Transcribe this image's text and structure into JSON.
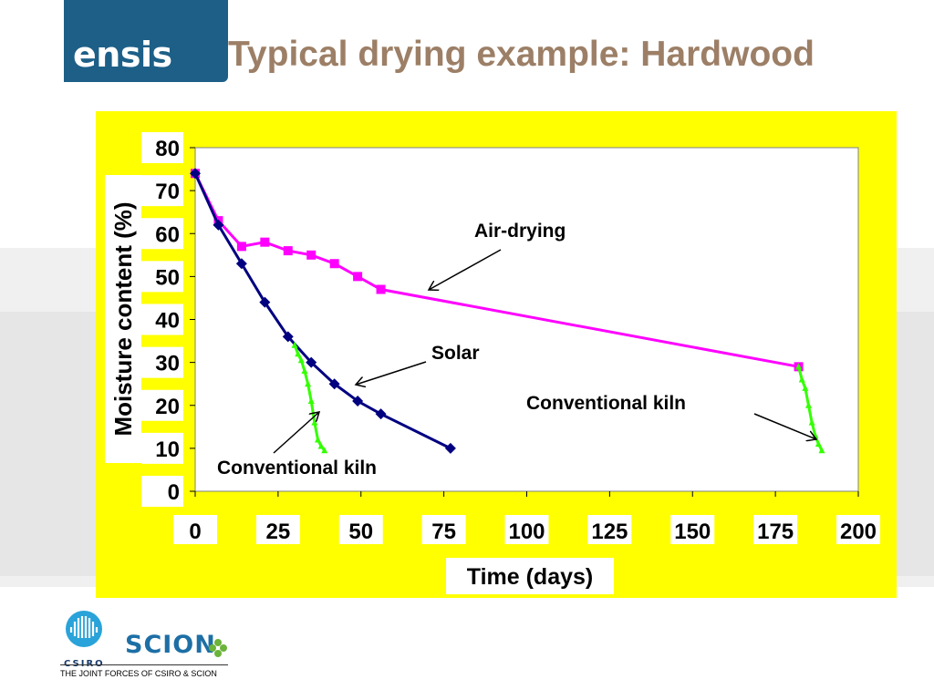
{
  "header": {
    "logo_text": "ensis",
    "title": "Typical drying example: Hardwood"
  },
  "footer": {
    "csiro_text": "CSIRO",
    "scion_text": "SCION",
    "tagline": "THE JOINT FORCES OF CSIRO & SCION"
  },
  "colors": {
    "title": "#9c7f66",
    "logo_bg": "#1d5f87",
    "chart_bg": "#ffff00",
    "air_drying": "#ff00ff",
    "solar": "#000080",
    "kiln": "#33ff00"
  },
  "chart_data": {
    "type": "line",
    "xlabel": "Time (days)",
    "ylabel": "Moisture content (%)",
    "xlim": [
      0,
      200
    ],
    "ylim": [
      0,
      80
    ],
    "xticks": [
      0,
      25,
      50,
      75,
      100,
      125,
      150,
      175,
      200
    ],
    "yticks": [
      0,
      10,
      20,
      30,
      40,
      50,
      60,
      70,
      80
    ],
    "grid": false,
    "series": [
      {
        "key": "air_drying",
        "marker": "square",
        "x": [
          0,
          7,
          14,
          21,
          28,
          35,
          42,
          49,
          56,
          182
        ],
        "y": [
          74,
          63,
          57,
          58,
          56,
          55,
          53,
          50,
          47,
          29
        ]
      },
      {
        "key": "solar",
        "marker": "diamond",
        "x": [
          0,
          7,
          14,
          21,
          28,
          35,
          42,
          49,
          56,
          77
        ],
        "y": [
          74,
          62,
          53,
          44,
          36,
          30,
          25,
          21,
          18,
          10
        ]
      },
      {
        "key": "kiln_early",
        "marker": "triangle",
        "x": [
          30,
          31,
          32,
          33,
          34,
          35,
          36,
          37,
          38,
          39
        ],
        "y": [
          34,
          32,
          30.5,
          28,
          25,
          21,
          16,
          12,
          10.5,
          9.5
        ]
      },
      {
        "key": "kiln_late",
        "marker": "triangle",
        "x": [
          182,
          183,
          184,
          185,
          186,
          187,
          188,
          189
        ],
        "y": [
          29,
          26,
          24,
          20,
          16,
          13,
          11,
          9.5
        ]
      }
    ],
    "annotations": [
      {
        "key": "air",
        "text": "Air-drying"
      },
      {
        "key": "solar",
        "text": "Solar"
      },
      {
        "key": "kiln_right",
        "text": "Conventional kiln"
      },
      {
        "key": "kiln_left",
        "text": "Conventional kiln"
      }
    ]
  }
}
